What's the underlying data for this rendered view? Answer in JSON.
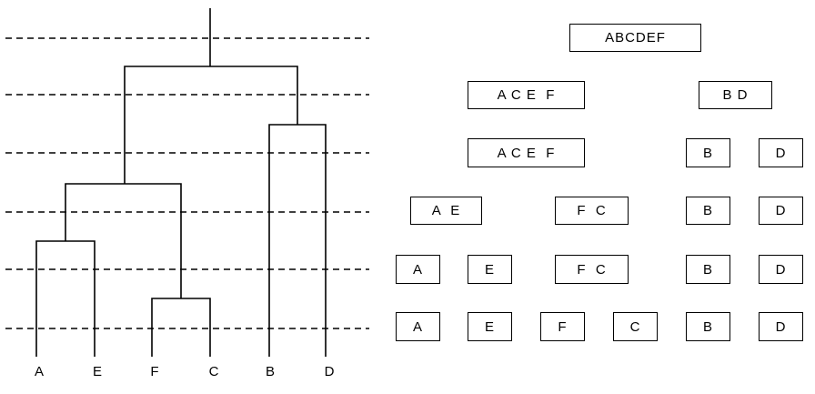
{
  "leaves": [
    "A",
    "E",
    "F",
    "C",
    "B",
    "D"
  ],
  "cluster_levels": [
    [
      "ABCDEF"
    ],
    [
      "A C E  F",
      "B D"
    ],
    [
      "A C E  F",
      "B",
      "D"
    ],
    [
      "A  E",
      "F  C",
      "B",
      "D"
    ],
    [
      "A",
      "E",
      "F  C",
      "B",
      "D"
    ],
    [
      "A",
      "E",
      "F",
      "C",
      "B",
      "D"
    ]
  ]
}
